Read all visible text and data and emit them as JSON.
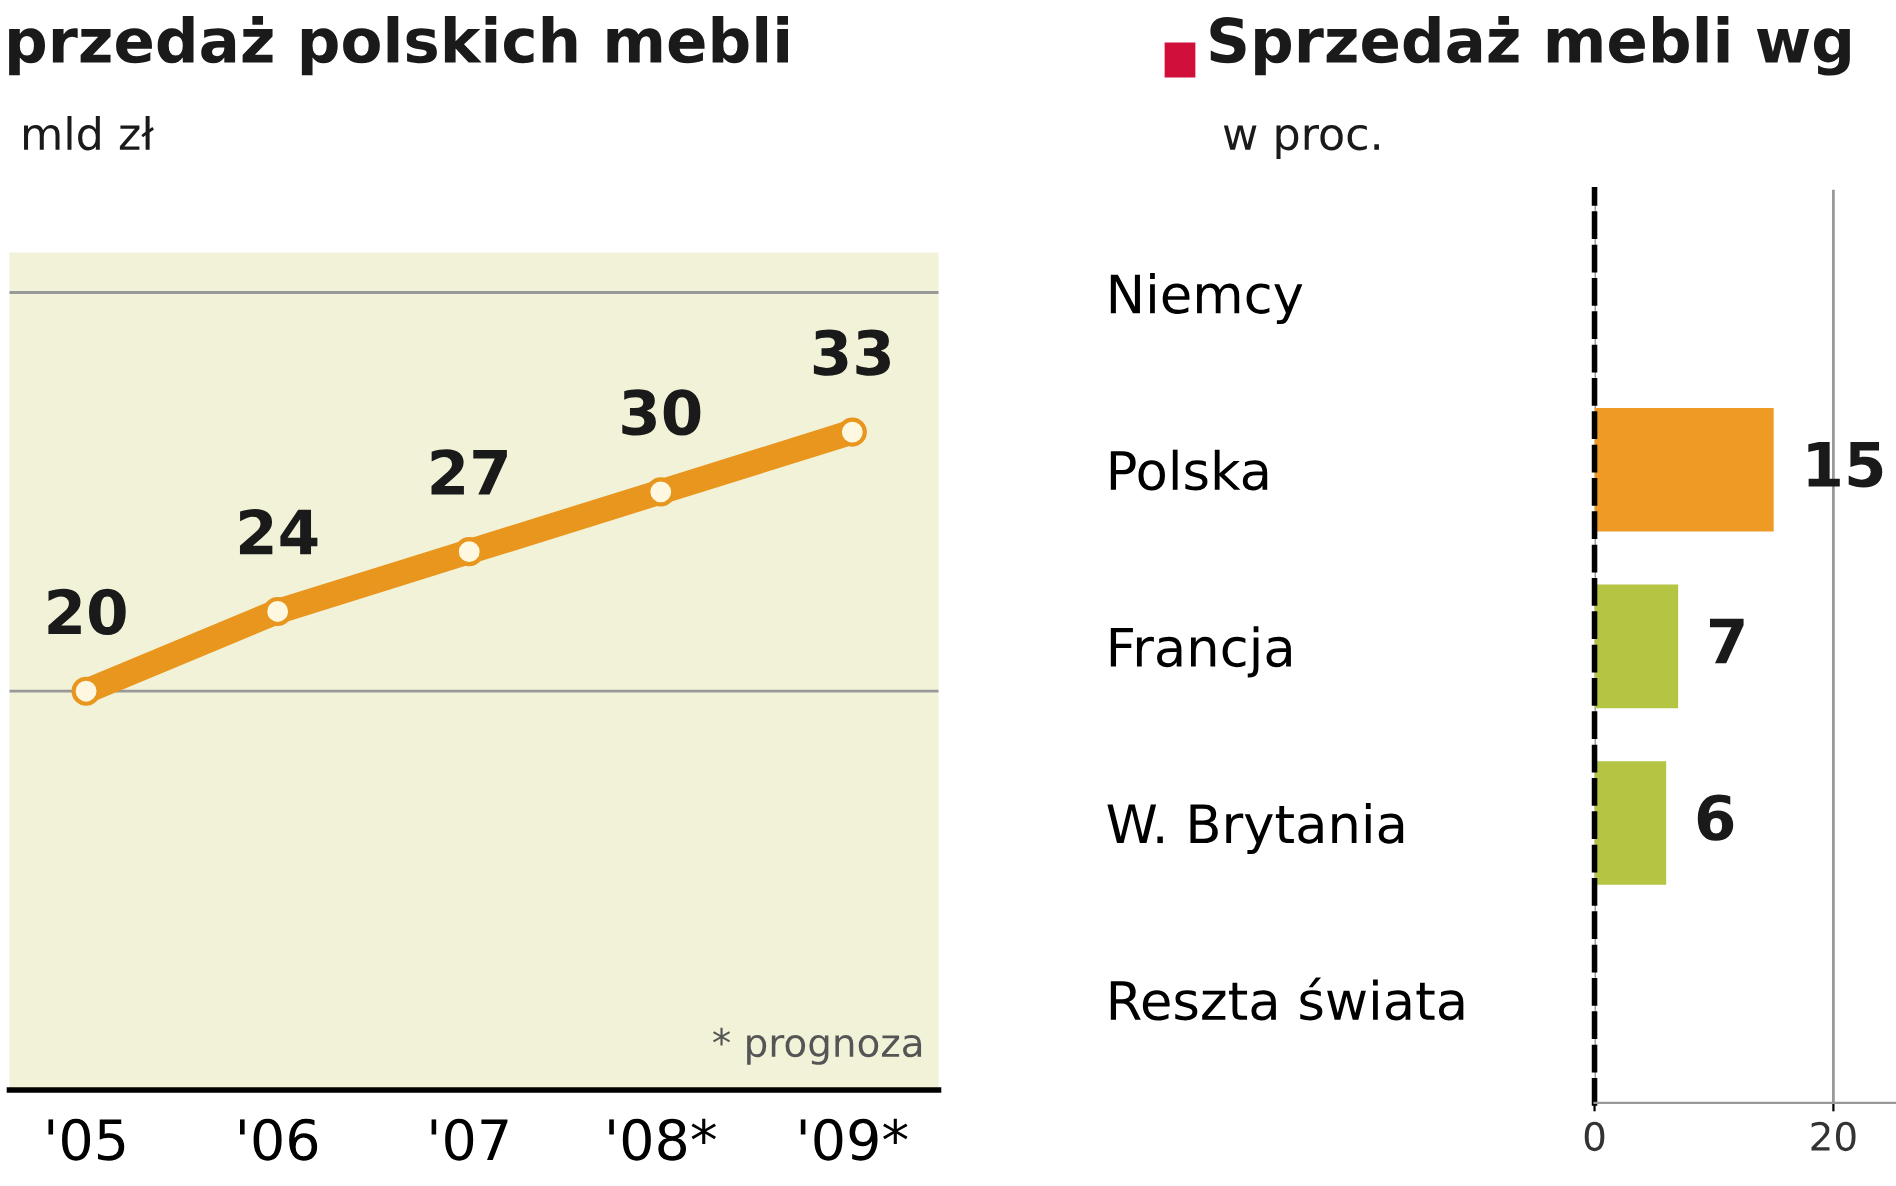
{
  "chart_data": [
    {
      "type": "line",
      "title": "przedaż polskich mebli",
      "subtitle": "mld zł",
      "categories": [
        "'05",
        "'06",
        "'07",
        "'08*",
        "'09*"
      ],
      "series": [
        {
          "color": "#e8961e",
          "values": [
            20,
            24,
            27,
            30,
            33
          ]
        }
      ],
      "ylim": [
        0,
        42
      ],
      "ref_lines": [
        {
          "axis": "y",
          "value": 20,
          "color": "#999999"
        },
        {
          "axis": "y",
          "value": 40,
          "color": "#999999"
        }
      ],
      "tick_labels": "x",
      "marker": "circle",
      "data_labels": true,
      "annotations": [
        "* prognoza"
      ]
    },
    {
      "type": "bar",
      "orientation": "horizontal",
      "title": "Sprzedaż mebli wg",
      "subtitle": "w proc.",
      "categories": [
        "Niemcy",
        "Polska",
        "Francja",
        "W. Brytania",
        "Reszta świata"
      ],
      "values": [
        null,
        15,
        7,
        6,
        null
      ],
      "colors": [
        "#b5c443",
        "#ee9a24",
        "#b5c443",
        "#b5c443",
        "#b5c443"
      ],
      "xlim": [
        0,
        25.4
      ],
      "xticks": [
        0,
        20
      ],
      "grid": "x",
      "data_labels": true
    }
  ]
}
